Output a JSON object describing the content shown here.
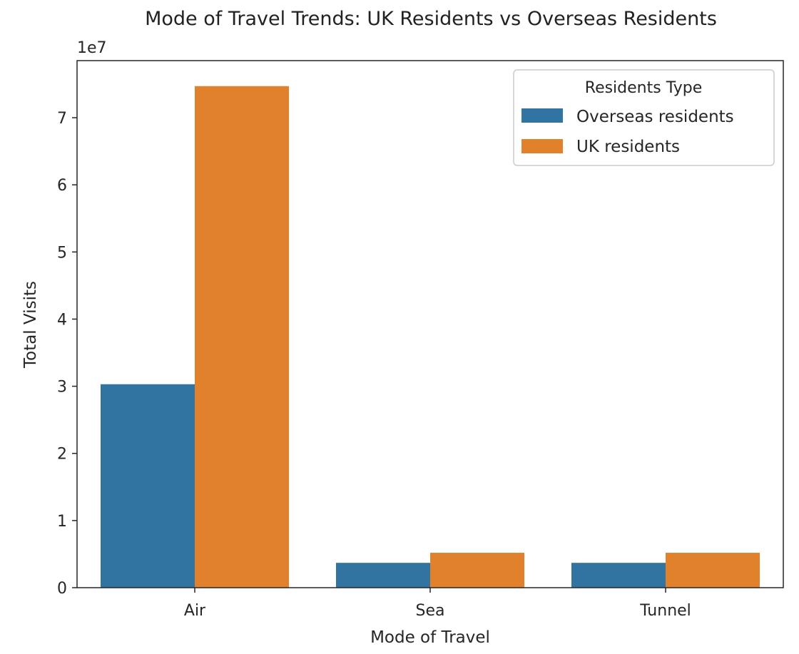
{
  "chart_data": {
    "type": "bar",
    "title": "Mode of Travel Trends: UK Residents vs Overseas Residents",
    "xlabel": "Mode of Travel",
    "ylabel": "Total Visits",
    "y_offset_label": "1e7",
    "categories": [
      "Air",
      "Sea",
      "Tunnel"
    ],
    "series": [
      {
        "name": "Overseas residents",
        "color": "#3274a1",
        "values": [
          30300000,
          3700000,
          3700000
        ]
      },
      {
        "name": "UK residents",
        "color": "#e1812c",
        "values": [
          74700000,
          5200000,
          5200000
        ]
      }
    ],
    "ylim": [
      0,
      78500000
    ],
    "y_ticks": [
      {
        "value": 0,
        "label": "0"
      },
      {
        "value": 10000000,
        "label": "1"
      },
      {
        "value": 20000000,
        "label": "2"
      },
      {
        "value": 30000000,
        "label": "3"
      },
      {
        "value": 40000000,
        "label": "4"
      },
      {
        "value": 50000000,
        "label": "5"
      },
      {
        "value": 60000000,
        "label": "6"
      },
      {
        "value": 70000000,
        "label": "7"
      }
    ],
    "grid": false,
    "legend": {
      "title": "Residents Type",
      "placement": "top-right"
    }
  }
}
